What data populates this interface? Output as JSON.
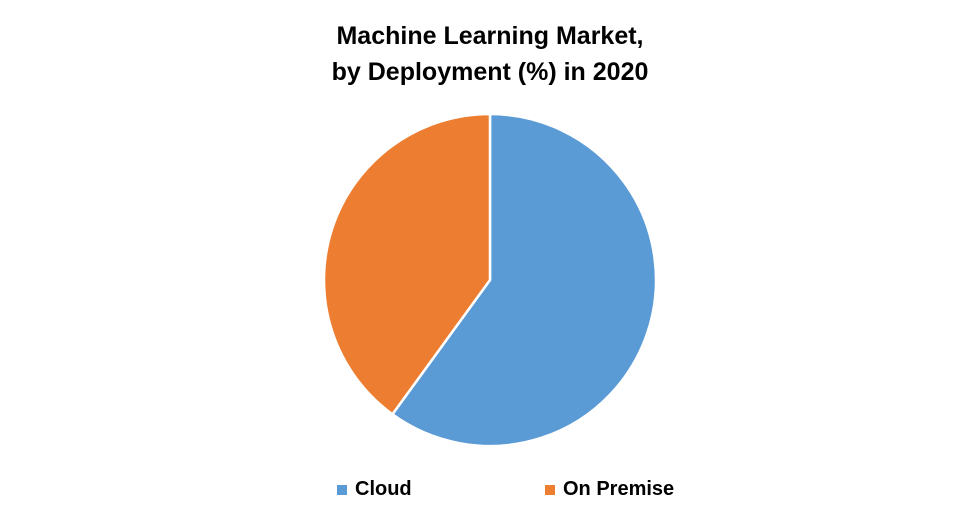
{
  "chart_data": {
    "type": "pie",
    "title_line1": "Machine Learning Market,",
    "title_line2": "by Deployment (%) in 2020",
    "categories": [
      "Cloud",
      "On Premise"
    ],
    "values": [
      60,
      40
    ],
    "colors": [
      "#5B9BD5",
      "#ED7D31"
    ],
    "start_angle": "top, clockwise",
    "legend_position": "bottom"
  }
}
